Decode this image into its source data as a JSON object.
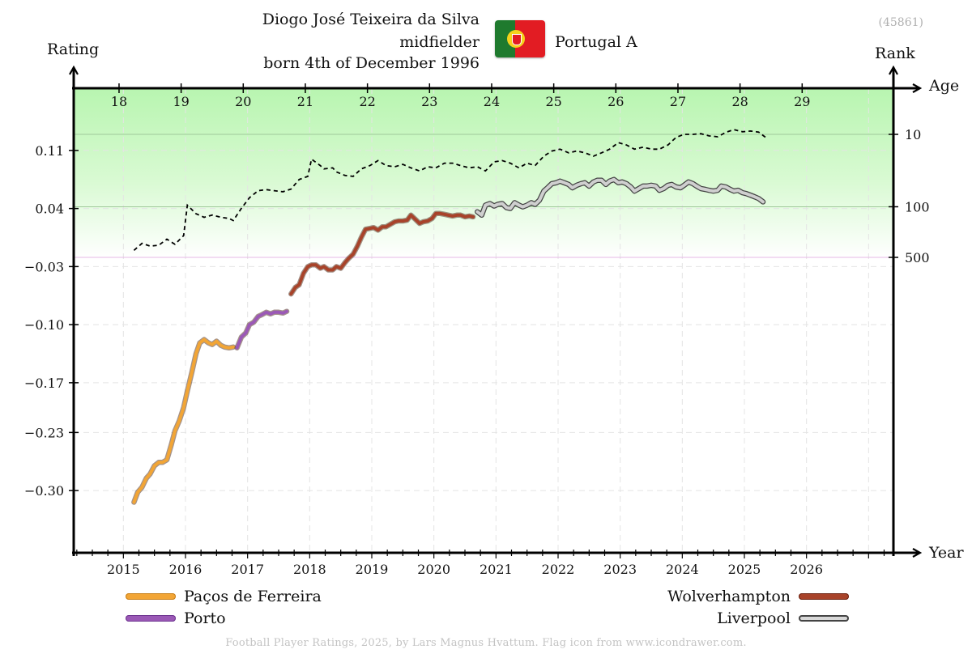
{
  "header": {
    "player_name": "Diogo José Teixeira da Silva",
    "position": "midfielder",
    "born": "born 4th of December 1996",
    "nation": "Portugal A",
    "player_id": "(45861)",
    "flag_icon": "portugal-flag-icon"
  },
  "axes": {
    "rating_label": "Rating",
    "rank_label": "Rank",
    "age_label": "Age",
    "year_label": "Year"
  },
  "legend": {
    "pacos": "Paços de Ferreira",
    "porto": "Porto",
    "wolves": "Wolverhampton",
    "liverpool": "Liverpool"
  },
  "footer": "Football Player Ratings, 2025, by Lars Magnus Hvattum. Flag icon from www.icondrawer.com.",
  "colors": {
    "pacos": "#f2a535",
    "porto": "#9b59b6",
    "wolves": "#a8432a",
    "liverpool": "#cfcfcf",
    "liverpool_edge": "#444444",
    "green_band": "#b8f5b0",
    "rank_line": "#000000"
  },
  "chart_data": {
    "type": "line",
    "xlabel": "Year",
    "ylabel": "Rating",
    "y2label": "Rank",
    "xlim": [
      2014.2,
      2027.4
    ],
    "ylim": [
      -0.375,
      0.185
    ],
    "y_ticks": [
      0.11,
      0.04,
      -0.03,
      -0.1,
      -0.17,
      -0.23,
      -0.3
    ],
    "y_tick_labels": [
      "0.11",
      "0.04",
      "−0.03",
      "−0.10",
      "−0.17",
      "−0.23",
      "−0.30"
    ],
    "x_ticks": [
      2015,
      2016,
      2017,
      2018,
      2019,
      2020,
      2021,
      2022,
      2023,
      2024,
      2025,
      2026
    ],
    "x_tick_labels": [
      "2015",
      "2016",
      "2017",
      "2018",
      "2019",
      "2020",
      "2021",
      "2022",
      "2023",
      "2024",
      "2025",
      "2026"
    ],
    "age_ticks": [
      18,
      19,
      20,
      21,
      22,
      23,
      24,
      25,
      26,
      27,
      28,
      29
    ],
    "age_tick_labels": [
      "18",
      "19",
      "20",
      "21",
      "22",
      "23",
      "24",
      "25",
      "26",
      "27",
      "28",
      "29"
    ],
    "birth_year": 1996.93,
    "rank_ticks": [
      10,
      100,
      500
    ],
    "rank_tick_labels": [
      "10",
      "100",
      "500"
    ],
    "rank_scale": "log",
    "grid": true,
    "series": [
      {
        "name": "Paços de Ferreira",
        "color": "#f2a535",
        "points": [
          [
            2015.17,
            -0.314
          ],
          [
            2015.23,
            -0.302
          ],
          [
            2015.3,
            -0.296
          ],
          [
            2015.37,
            -0.285
          ],
          [
            2015.43,
            -0.28
          ],
          [
            2015.5,
            -0.27
          ],
          [
            2015.57,
            -0.266
          ],
          [
            2015.63,
            -0.266
          ],
          [
            2015.7,
            -0.263
          ],
          [
            2015.77,
            -0.245
          ],
          [
            2015.83,
            -0.228
          ],
          [
            2015.9,
            -0.216
          ],
          [
            2015.97,
            -0.2
          ],
          [
            2016.03,
            -0.18
          ],
          [
            2016.1,
            -0.158
          ],
          [
            2016.17,
            -0.135
          ],
          [
            2016.23,
            -0.122
          ],
          [
            2016.3,
            -0.118
          ],
          [
            2016.37,
            -0.122
          ],
          [
            2016.43,
            -0.124
          ],
          [
            2016.5,
            -0.12
          ],
          [
            2016.57,
            -0.125
          ],
          [
            2016.63,
            -0.127
          ],
          [
            2016.7,
            -0.128
          ],
          [
            2016.77,
            -0.127
          ]
        ]
      },
      {
        "name": "Porto",
        "color": "#9b59b6",
        "points": [
          [
            2016.83,
            -0.128
          ],
          [
            2016.9,
            -0.115
          ],
          [
            2016.97,
            -0.11
          ],
          [
            2017.03,
            -0.1
          ],
          [
            2017.1,
            -0.097
          ],
          [
            2017.17,
            -0.09
          ],
          [
            2017.23,
            -0.088
          ],
          [
            2017.3,
            -0.085
          ],
          [
            2017.37,
            -0.087
          ],
          [
            2017.43,
            -0.085
          ],
          [
            2017.5,
            -0.085
          ],
          [
            2017.57,
            -0.086
          ],
          [
            2017.63,
            -0.084
          ]
        ]
      },
      {
        "name": "Wolverhampton",
        "color": "#a8432a",
        "points": [
          [
            2017.7,
            -0.063
          ],
          [
            2017.77,
            -0.055
          ],
          [
            2017.83,
            -0.052
          ],
          [
            2017.9,
            -0.038
          ],
          [
            2017.97,
            -0.03
          ],
          [
            2018.03,
            -0.028
          ],
          [
            2018.1,
            -0.028
          ],
          [
            2018.17,
            -0.032
          ],
          [
            2018.23,
            -0.03
          ],
          [
            2018.3,
            -0.034
          ],
          [
            2018.37,
            -0.034
          ],
          [
            2018.43,
            -0.03
          ],
          [
            2018.5,
            -0.032
          ],
          [
            2018.57,
            -0.025
          ],
          [
            2018.63,
            -0.02
          ],
          [
            2018.7,
            -0.015
          ],
          [
            2018.77,
            -0.005
          ],
          [
            2018.83,
            0.005
          ],
          [
            2018.9,
            0.015
          ],
          [
            2018.97,
            0.016
          ],
          [
            2019.03,
            0.017
          ],
          [
            2019.1,
            0.014
          ],
          [
            2019.17,
            0.018
          ],
          [
            2019.23,
            0.018
          ],
          [
            2019.3,
            0.021
          ],
          [
            2019.37,
            0.024
          ],
          [
            2019.43,
            0.025
          ],
          [
            2019.5,
            0.025
          ],
          [
            2019.57,
            0.026
          ],
          [
            2019.63,
            0.032
          ],
          [
            2019.7,
            0.027
          ],
          [
            2019.77,
            0.022
          ],
          [
            2019.83,
            0.024
          ],
          [
            2019.9,
            0.025
          ],
          [
            2019.97,
            0.028
          ],
          [
            2020.03,
            0.034
          ],
          [
            2020.1,
            0.034
          ],
          [
            2020.17,
            0.033
          ],
          [
            2020.23,
            0.032
          ],
          [
            2020.3,
            0.031
          ],
          [
            2020.37,
            0.032
          ],
          [
            2020.43,
            0.032
          ],
          [
            2020.5,
            0.03
          ],
          [
            2020.57,
            0.031
          ],
          [
            2020.63,
            0.03
          ]
        ]
      },
      {
        "name": "Liverpool",
        "color": "#cfcfcf",
        "edge": "#444444",
        "points": [
          [
            2020.7,
            0.036
          ],
          [
            2020.77,
            0.032
          ],
          [
            2020.83,
            0.044
          ],
          [
            2020.9,
            0.046
          ],
          [
            2020.97,
            0.043
          ],
          [
            2021.03,
            0.045
          ],
          [
            2021.1,
            0.046
          ],
          [
            2021.17,
            0.041
          ],
          [
            2021.23,
            0.04
          ],
          [
            2021.3,
            0.047
          ],
          [
            2021.37,
            0.044
          ],
          [
            2021.43,
            0.042
          ],
          [
            2021.5,
            0.044
          ],
          [
            2021.57,
            0.047
          ],
          [
            2021.63,
            0.045
          ],
          [
            2021.7,
            0.05
          ],
          [
            2021.77,
            0.061
          ],
          [
            2021.83,
            0.065
          ],
          [
            2021.9,
            0.07
          ],
          [
            2021.97,
            0.071
          ],
          [
            2022.03,
            0.073
          ],
          [
            2022.1,
            0.071
          ],
          [
            2022.17,
            0.069
          ],
          [
            2022.23,
            0.065
          ],
          [
            2022.3,
            0.068
          ],
          [
            2022.37,
            0.07
          ],
          [
            2022.43,
            0.071
          ],
          [
            2022.5,
            0.067
          ],
          [
            2022.57,
            0.072
          ],
          [
            2022.63,
            0.074
          ],
          [
            2022.7,
            0.074
          ],
          [
            2022.77,
            0.069
          ],
          [
            2022.83,
            0.073
          ],
          [
            2022.9,
            0.075
          ],
          [
            2022.97,
            0.071
          ],
          [
            2023.03,
            0.072
          ],
          [
            2023.1,
            0.07
          ],
          [
            2023.17,
            0.066
          ],
          [
            2023.23,
            0.061
          ],
          [
            2023.3,
            0.064
          ],
          [
            2023.37,
            0.067
          ],
          [
            2023.43,
            0.067
          ],
          [
            2023.5,
            0.068
          ],
          [
            2023.57,
            0.067
          ],
          [
            2023.63,
            0.062
          ],
          [
            2023.7,
            0.064
          ],
          [
            2023.77,
            0.068
          ],
          [
            2023.83,
            0.069
          ],
          [
            2023.9,
            0.066
          ],
          [
            2023.97,
            0.065
          ],
          [
            2024.03,
            0.068
          ],
          [
            2024.1,
            0.072
          ],
          [
            2024.17,
            0.07
          ],
          [
            2024.23,
            0.067
          ],
          [
            2024.3,
            0.064
          ],
          [
            2024.37,
            0.063
          ],
          [
            2024.43,
            0.062
          ],
          [
            2024.5,
            0.061
          ],
          [
            2024.57,
            0.062
          ],
          [
            2024.63,
            0.067
          ],
          [
            2024.7,
            0.066
          ],
          [
            2024.77,
            0.063
          ],
          [
            2024.83,
            0.061
          ],
          [
            2024.9,
            0.062
          ],
          [
            2024.97,
            0.059
          ],
          [
            2025.03,
            0.058
          ],
          [
            2025.1,
            0.056
          ],
          [
            2025.17,
            0.054
          ],
          [
            2025.23,
            0.052
          ],
          [
            2025.3,
            0.048
          ]
        ]
      }
    ],
    "rank_series": {
      "style": "dashed",
      "points": [
        [
          2015.17,
          400
        ],
        [
          2015.3,
          320
        ],
        [
          2015.43,
          350
        ],
        [
          2015.57,
          340
        ],
        [
          2015.7,
          280
        ],
        [
          2015.83,
          330
        ],
        [
          2015.97,
          250
        ],
        [
          2016.03,
          95
        ],
        [
          2016.17,
          125
        ],
        [
          2016.3,
          140
        ],
        [
          2016.43,
          130
        ],
        [
          2016.57,
          140
        ],
        [
          2016.7,
          145
        ],
        [
          2016.77,
          155
        ],
        [
          2016.9,
          105
        ],
        [
          2017.03,
          75
        ],
        [
          2017.17,
          60
        ],
        [
          2017.3,
          58
        ],
        [
          2017.43,
          60
        ],
        [
          2017.57,
          62
        ],
        [
          2017.7,
          57
        ],
        [
          2017.83,
          42
        ],
        [
          2017.97,
          38
        ],
        [
          2018.03,
          22
        ],
        [
          2018.17,
          27
        ],
        [
          2018.23,
          30
        ],
        [
          2018.37,
          29
        ],
        [
          2018.43,
          33
        ],
        [
          2018.57,
          37
        ],
        [
          2018.7,
          38
        ],
        [
          2018.83,
          30
        ],
        [
          2018.97,
          27
        ],
        [
          2019.1,
          23
        ],
        [
          2019.23,
          27
        ],
        [
          2019.37,
          28
        ],
        [
          2019.5,
          26
        ],
        [
          2019.63,
          29
        ],
        [
          2019.77,
          32
        ],
        [
          2019.9,
          28
        ],
        [
          2020.03,
          29
        ],
        [
          2020.17,
          25
        ],
        [
          2020.3,
          25
        ],
        [
          2020.43,
          27
        ],
        [
          2020.57,
          29
        ],
        [
          2020.7,
          28
        ],
        [
          2020.83,
          32
        ],
        [
          2020.97,
          24
        ],
        [
          2021.1,
          23
        ],
        [
          2021.23,
          25
        ],
        [
          2021.37,
          29
        ],
        [
          2021.5,
          25
        ],
        [
          2021.63,
          27
        ],
        [
          2021.77,
          20
        ],
        [
          2021.9,
          17
        ],
        [
          2022.03,
          16
        ],
        [
          2022.17,
          18
        ],
        [
          2022.3,
          17
        ],
        [
          2022.43,
          18
        ],
        [
          2022.57,
          20
        ],
        [
          2022.7,
          18
        ],
        [
          2022.83,
          16
        ],
        [
          2022.97,
          13
        ],
        [
          2023.1,
          14
        ],
        [
          2023.23,
          16
        ],
        [
          2023.37,
          15
        ],
        [
          2023.5,
          16
        ],
        [
          2023.63,
          16
        ],
        [
          2023.77,
          14
        ],
        [
          2023.9,
          11
        ],
        [
          2024.03,
          10
        ],
        [
          2024.17,
          10
        ],
        [
          2024.3,
          9.8
        ],
        [
          2024.43,
          10.5
        ],
        [
          2024.57,
          10.8
        ],
        [
          2024.7,
          9.4
        ],
        [
          2024.83,
          8.6
        ],
        [
          2024.97,
          9.2
        ],
        [
          2025.1,
          9.0
        ],
        [
          2025.23,
          9.3
        ],
        [
          2025.37,
          11.5
        ]
      ]
    }
  }
}
